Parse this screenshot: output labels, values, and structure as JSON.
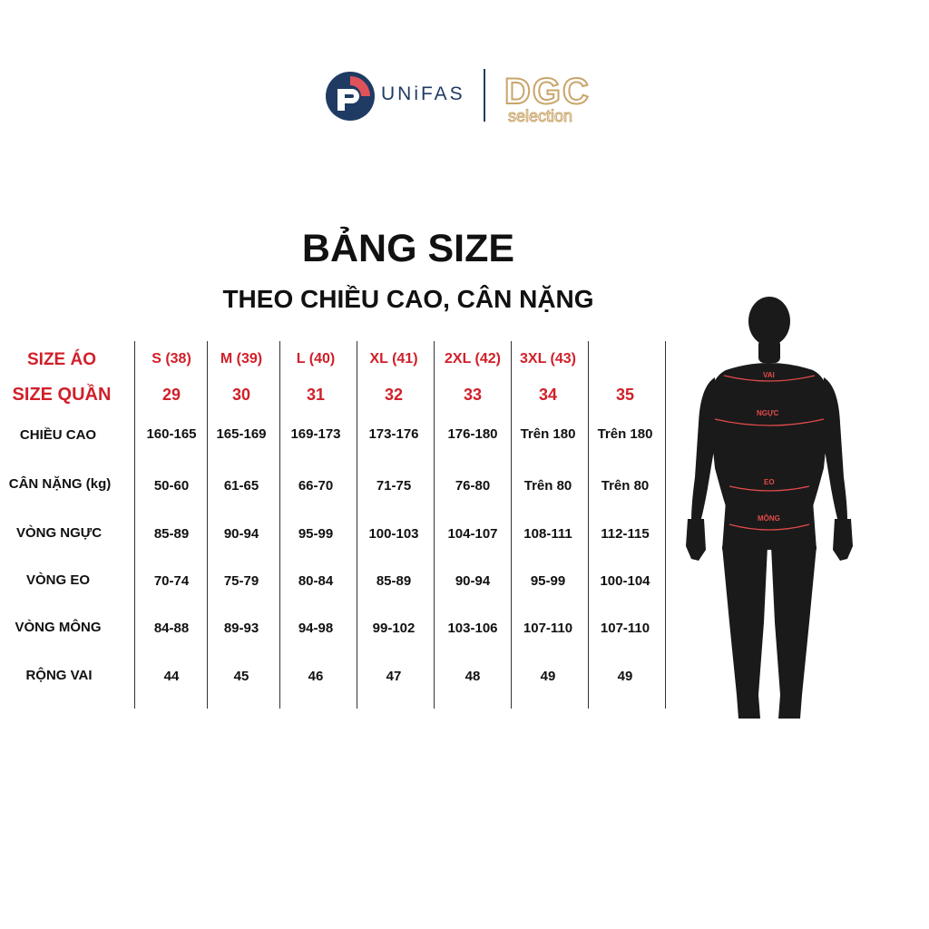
{
  "brand": {
    "unifas_text": "UNiFAS",
    "dgc_main": "DGC",
    "dgc_sub": "selection",
    "colors": {
      "navy": "#1f3b63",
      "coral": "#e0525a",
      "gold": "#c9a56a"
    }
  },
  "title": "BẢNG SIZE",
  "subtitle": "THEO CHIỀU CAO, CÂN NẶNG",
  "table": {
    "row_labels": {
      "size_ao": "SIZE ÁO",
      "size_quan": "SIZE QUẦN",
      "chieu_cao": "CHIỀU CAO",
      "can_nang": "CÂN NẶNG (kg)",
      "vong_nguc": "VÒNG NGỰC",
      "vong_eo": "VÒNG EO",
      "vong_mong": "VÒNG MÔNG",
      "rong_vai": "RỘNG VAI"
    },
    "columns": [
      {
        "size_ao": "S (38)",
        "size_quan": "29",
        "chieu_cao": "160-165",
        "can_nang": "50-60",
        "vong_nguc": "85-89",
        "vong_eo": "70-74",
        "vong_mong": "84-88",
        "rong_vai": "44"
      },
      {
        "size_ao": "M (39)",
        "size_quan": "30",
        "chieu_cao": "165-169",
        "can_nang": "61-65",
        "vong_nguc": "90-94",
        "vong_eo": "75-79",
        "vong_mong": "89-93",
        "rong_vai": "45"
      },
      {
        "size_ao": "L (40)",
        "size_quan": "31",
        "chieu_cao": "169-173",
        "can_nang": "66-70",
        "vong_nguc": "95-99",
        "vong_eo": "80-84",
        "vong_mong": "94-98",
        "rong_vai": "46"
      },
      {
        "size_ao": "XL (41)",
        "size_quan": "32",
        "chieu_cao": "173-176",
        "can_nang": "71-75",
        "vong_nguc": "100-103",
        "vong_eo": "85-89",
        "vong_mong": "99-102",
        "rong_vai": "47"
      },
      {
        "size_ao": "2XL (42)",
        "size_quan": "33",
        "chieu_cao": "176-180",
        "can_nang": "76-80",
        "vong_nguc": "104-107",
        "vong_eo": "90-94",
        "vong_mong": "103-106",
        "rong_vai": "48"
      },
      {
        "size_ao": "3XL (43)",
        "size_quan": "34",
        "chieu_cao": "Trên 180",
        "can_nang": "Trên 80",
        "vong_nguc": "108-111",
        "vong_eo": "95-99",
        "vong_mong": "107-110",
        "rong_vai": "49"
      },
      {
        "size_ao": "",
        "size_quan": "35",
        "chieu_cao": "Trên 180",
        "can_nang": "Trên 80",
        "vong_nguc": "112-115",
        "vong_eo": "100-104",
        "vong_mong": "107-110",
        "rong_vai": "49"
      }
    ],
    "colors": {
      "header_red": "#d0202a",
      "text": "#111111",
      "divider": "#333333"
    }
  },
  "figure": {
    "labels": {
      "vai": "VAI",
      "nguc": "NGỰC",
      "eo": "EO",
      "mong": "MÔNG"
    },
    "colors": {
      "body": "#1a1a1a",
      "arrow": "#e34a4a"
    }
  }
}
